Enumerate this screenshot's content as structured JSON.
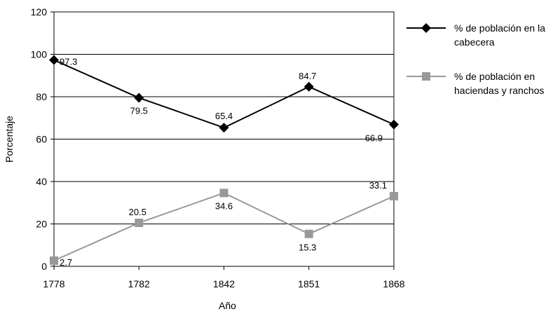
{
  "chart_data": {
    "type": "line",
    "xlabel": "Año",
    "ylabel": "Porcentaje",
    "categories": [
      "1778",
      "1782",
      "1842",
      "1851",
      "1868"
    ],
    "ylim": [
      0,
      120
    ],
    "yticks": [
      "0",
      "20",
      "40",
      "60",
      "80",
      "100",
      "120"
    ],
    "grid": true,
    "legend_position": "right",
    "series": [
      {
        "name_lines": [
          "% de población en la",
          "cabecera"
        ],
        "values": [
          97.3,
          79.5,
          65.4,
          84.7,
          66.9
        ],
        "labels": [
          "97.3",
          "79.5",
          "65.4",
          "84.7",
          "66.9"
        ],
        "color": "#000000",
        "marker": "diamond"
      },
      {
        "name_lines": [
          "% de población en",
          "haciendas y ranchos"
        ],
        "values": [
          2.7,
          20.5,
          34.6,
          15.3,
          33.1
        ],
        "labels": [
          "2.7",
          "20.5",
          "34.6",
          "15.3",
          "33.1"
        ],
        "color": "#999999",
        "marker": "square"
      }
    ]
  }
}
